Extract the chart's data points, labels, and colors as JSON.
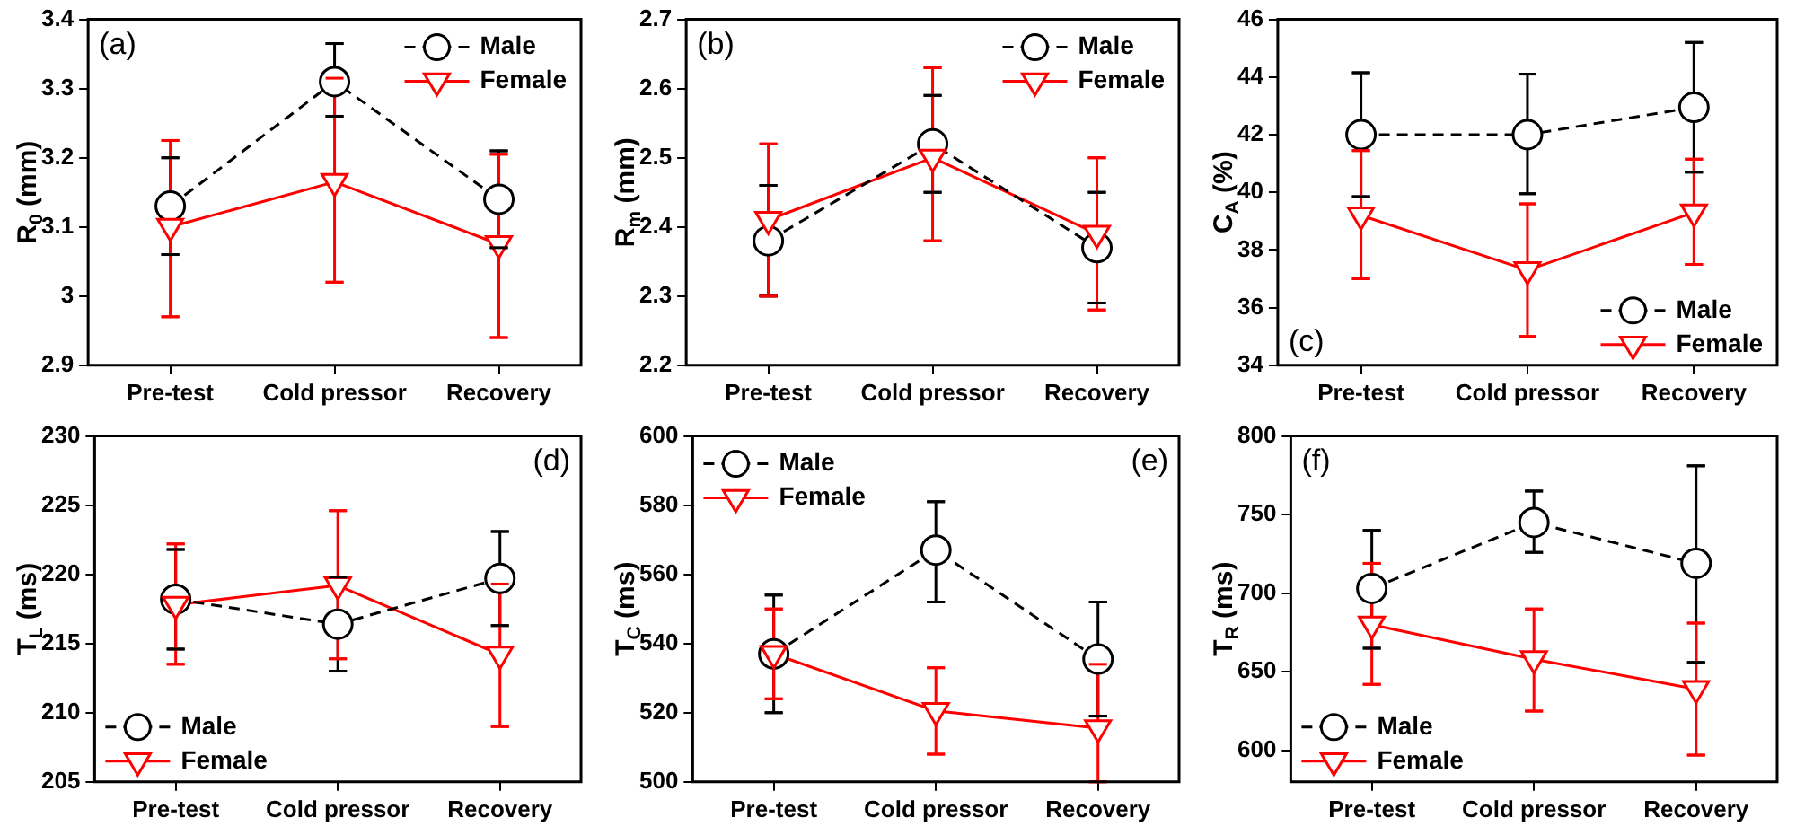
{
  "chart_data": [
    {
      "type": "line",
      "ylabel": "R$_{0}$ (mm)",
      "categories": [
        "Pre-test",
        "Cold pressor",
        "Recovery"
      ],
      "ylim": [
        2.9,
        3.4
      ],
      "yticks": [
        {
          "value": 2.9,
          "label": "2.9"
        },
        3.0,
        3.1,
        3.2,
        3.3,
        3.4
      ],
      "legend": "top right",
      "grid": false,
      "annotations": [
        "(a)"
      ],
      "series": [
        {
          "name": "Male",
          "color": "#000000",
          "marker": "circle",
          "line_style": "dashed",
          "values": [
            3.13,
            3.31,
            3.14
          ],
          "errors": [
            [
              3.06,
              3.2
            ],
            [
              3.26,
              3.365
            ],
            [
              3.07,
              3.21
            ]
          ]
        },
        {
          "name": "Female",
          "color": "#ff0000",
          "marker": "triangle",
          "line_style": "solid",
          "values": [
            3.1,
            3.165,
            3.075
          ],
          "errors": [
            [
              2.97,
              3.225
            ],
            [
              3.02,
              3.315
            ],
            [
              2.94,
              3.205
            ]
          ]
        }
      ]
    },
    {
      "type": "line",
      "ylabel": "R$_{m}$ (mm)",
      "categories": [
        "Pre-test",
        "Cold pressor",
        "Recovery"
      ],
      "ylim": [
        2.2,
        2.7
      ],
      "yticks": [
        2.2,
        2.3,
        2.4,
        2.5,
        2.6,
        2.7
      ],
      "legend": "top right",
      "grid": false,
      "annotations": [
        "(b)"
      ],
      "series": [
        {
          "name": "Male",
          "color": "#000000",
          "marker": "circle",
          "line_style": "dashed",
          "values": [
            2.38,
            2.52,
            2.37
          ],
          "errors": [
            [
              2.3,
              2.46
            ],
            [
              2.45,
              2.59
            ],
            [
              2.29,
              2.45
            ]
          ]
        },
        {
          "name": "Female",
          "color": "#ff0000",
          "marker": "triangle",
          "line_style": "solid",
          "values": [
            2.41,
            2.5,
            2.39
          ],
          "errors": [
            [
              2.3,
              2.52
            ],
            [
              2.38,
              2.63
            ],
            [
              2.28,
              2.5
            ]
          ]
        }
      ]
    },
    {
      "type": "line",
      "ylabel": "C$_{A}$ (%)",
      "categories": [
        "Pre-test",
        "Cold pressor",
        "Recovery"
      ],
      "ylim": [
        34,
        46
      ],
      "yticks": [
        34,
        36,
        38,
        40,
        42,
        44,
        46
      ],
      "legend": "bottom right",
      "grid": false,
      "annotations": [
        "(c)"
      ],
      "series": [
        {
          "name": "Male",
          "color": "#000000",
          "marker": "circle",
          "line_style": "dashed",
          "values": [
            42.0,
            42.0,
            42.95
          ],
          "errors": [
            [
              39.85,
              44.15
            ],
            [
              39.95,
              44.1
            ],
            [
              40.7,
              45.2
            ]
          ]
        },
        {
          "name": "Female",
          "color": "#ff0000",
          "marker": "triangle",
          "line_style": "solid",
          "values": [
            39.2,
            37.3,
            39.3
          ],
          "errors": [
            [
              37.0,
              41.45
            ],
            [
              35.0,
              39.6
            ],
            [
              37.5,
              41.15
            ]
          ]
        }
      ]
    },
    {
      "type": "line",
      "ylabel": "T$_{L}$ (ms)",
      "categories": [
        "Pre-test",
        "Cold pressor",
        "Recovery"
      ],
      "ylim": [
        205,
        230
      ],
      "yticks": [
        205,
        210,
        215,
        220,
        225,
        230
      ],
      "legend": "bottom left",
      "grid": false,
      "annotations": [
        "(d)"
      ],
      "series": [
        {
          "name": "Male",
          "color": "#000000",
          "marker": "circle",
          "line_style": "dashed",
          "values": [
            218.2,
            216.4,
            219.7
          ],
          "errors": [
            [
              214.6,
              221.8
            ],
            [
              213.0,
              219.8
            ],
            [
              216.3,
              223.1
            ]
          ]
        },
        {
          "name": "Female",
          "color": "#ff0000",
          "marker": "triangle",
          "line_style": "solid",
          "values": [
            217.8,
            219.2,
            214.2
          ],
          "errors": [
            [
              213.5,
              222.2
            ],
            [
              213.9,
              224.6
            ],
            [
              209.0,
              219.3
            ]
          ]
        }
      ]
    },
    {
      "type": "line",
      "ylabel": "T$_{C}$ (ms)",
      "categories": [
        "Pre-test",
        "Cold pressor",
        "Recovery"
      ],
      "ylim": [
        500,
        600
      ],
      "yticks": [
        500,
        520,
        540,
        560,
        580,
        600
      ],
      "legend": "top left",
      "grid": false,
      "annotations": [
        "(e)"
      ],
      "series": [
        {
          "name": "Male",
          "color": "#000000",
          "marker": "circle",
          "line_style": "dashed",
          "values": [
            537,
            567,
            535.5
          ],
          "errors": [
            [
              520,
              554
            ],
            [
              552,
              581
            ],
            [
              519,
              552
            ]
          ]
        },
        {
          "name": "Female",
          "color": "#ff0000",
          "marker": "triangle",
          "line_style": "solid",
          "values": [
            537,
            520.5,
            515.5
          ],
          "errors": [
            [
              524,
              550
            ],
            [
              508,
              533
            ],
            [
              500,
              534
            ]
          ]
        }
      ]
    },
    {
      "type": "line",
      "ylabel": "T$_{R}$ (ms)",
      "categories": [
        "Pre-test",
        "Cold pressor",
        "Recovery"
      ],
      "ylim": [
        580,
        800
      ],
      "yticks": [
        600,
        650,
        700,
        750,
        800
      ],
      "legend": "bottom left",
      "grid": false,
      "annotations": [
        "(f)"
      ],
      "series": [
        {
          "name": "Male",
          "color": "#000000",
          "marker": "circle",
          "line_style": "dashed",
          "values": [
            703,
            745,
            719
          ],
          "errors": [
            [
              665,
              740
            ],
            [
              726,
              765
            ],
            [
              656,
              781
            ]
          ]
        },
        {
          "name": "Female",
          "color": "#ff0000",
          "marker": "triangle",
          "line_style": "solid",
          "values": [
            680,
            658,
            639
          ],
          "errors": [
            [
              642,
              719
            ],
            [
              625,
              690
            ],
            [
              597,
              681
            ]
          ]
        }
      ]
    }
  ]
}
